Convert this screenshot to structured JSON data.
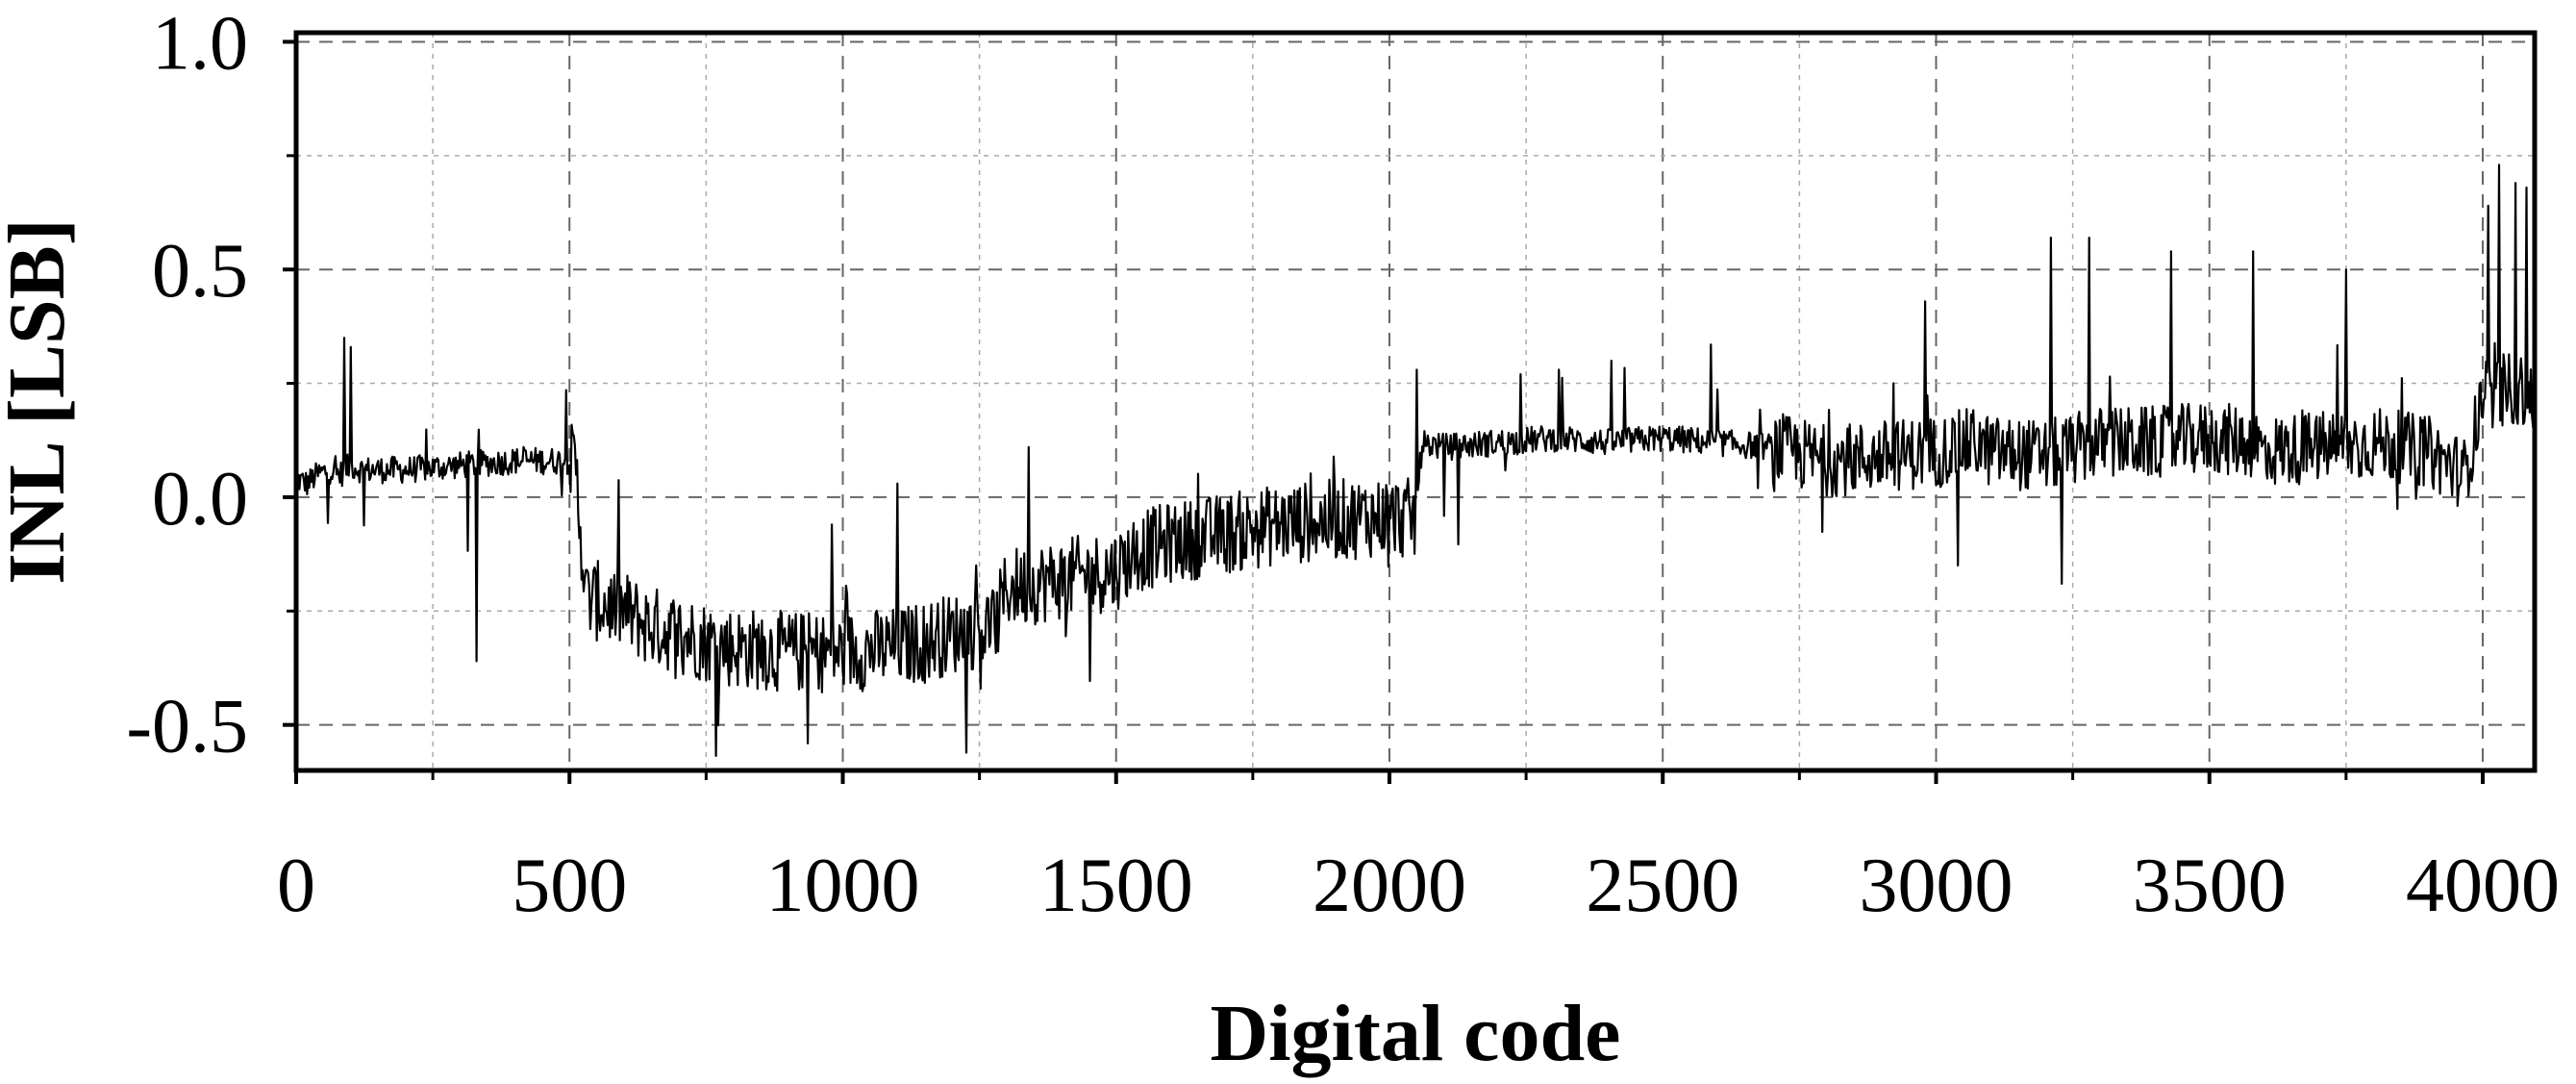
{
  "chart_data": {
    "type": "line",
    "title": "",
    "xlabel": "Digital code",
    "ylabel": "INL [LSB]",
    "xlim": [
      0,
      4095
    ],
    "ylim": [
      -0.6,
      1.02
    ],
    "x_ticks": [
      0,
      500,
      1000,
      1500,
      2000,
      2500,
      3000,
      3500,
      4000
    ],
    "y_ticks": [
      -0.5,
      0.0,
      0.5,
      1.0
    ],
    "x_tick_labels": [
      "0",
      "500",
      "1000",
      "1500",
      "2000",
      "2500",
      "3000",
      "3500",
      "4000"
    ],
    "y_tick_labels": [
      "-0.5",
      "0.0",
      "0.5",
      "1.0"
    ],
    "grid": true,
    "legend": "none",
    "series": [
      {
        "color": "#000000",
        "x": [
          0,
          20,
          40,
          60,
          80,
          100,
          120,
          200,
          300,
          400,
          500,
          512,
          530,
          600,
          640,
          700,
          760,
          800,
          900,
          1000,
          1100,
          1200,
          1280,
          1300,
          1400,
          1500,
          1536,
          1600,
          1700,
          1800,
          1900,
          2000,
          2047,
          2060,
          2100,
          2200,
          2300,
          2400,
          2500,
          2600,
          2700,
          2800,
          2900,
          3000,
          3072,
          3100,
          3200,
          3300,
          3400,
          3500,
          3584,
          3600,
          3700,
          3800,
          3900,
          3968,
          4000,
          4050,
          4095
        ],
        "y": [
          0.04,
          0.03,
          0.05,
          0.06,
          0.05,
          0.07,
          0.06,
          0.06,
          0.07,
          0.08,
          0.08,
          0.06,
          -0.22,
          -0.25,
          -0.28,
          -0.3,
          -0.32,
          -0.33,
          -0.34,
          -0.34,
          -0.33,
          -0.3,
          -0.28,
          -0.2,
          -0.18,
          -0.16,
          -0.12,
          -0.1,
          -0.08,
          -0.06,
          -0.05,
          -0.04,
          -0.05,
          0.12,
          0.11,
          0.12,
          0.13,
          0.12,
          0.13,
          0.12,
          0.11,
          0.08,
          0.09,
          0.1,
          0.12,
          0.1,
          0.09,
          0.12,
          0.12,
          0.13,
          0.12,
          0.1,
          0.11,
          0.12,
          0.1,
          0.05,
          0.22,
          0.24,
          0.22
        ],
        "noise_amplitude": 0.05,
        "spikes": [
          {
            "x": 88,
            "y": 0.35
          },
          {
            "x": 100,
            "y": 0.33
          },
          {
            "x": 330,
            "y": -0.36
          },
          {
            "x": 980,
            "y": -0.06
          },
          {
            "x": 1100,
            "y": 0.03
          },
          {
            "x": 1340,
            "y": 0.11
          },
          {
            "x": 2050,
            "y": 0.28
          },
          {
            "x": 2310,
            "y": 0.28
          },
          {
            "x": 2980,
            "y": 0.43
          },
          {
            "x": 3210,
            "y": 0.57
          },
          {
            "x": 3280,
            "y": 0.57
          },
          {
            "x": 3430,
            "y": 0.54
          },
          {
            "x": 3580,
            "y": 0.54
          },
          {
            "x": 3750,
            "y": 0.5
          },
          {
            "x": 4010,
            "y": 0.64
          },
          {
            "x": 4030,
            "y": 0.73
          },
          {
            "x": 4060,
            "y": 0.69
          },
          {
            "x": 4080,
            "y": 0.68
          },
          {
            "x": 3230,
            "y": -0.19
          },
          {
            "x": 3040,
            "y": -0.15
          },
          {
            "x": 2240,
            "y": 0.27
          }
        ]
      }
    ]
  }
}
